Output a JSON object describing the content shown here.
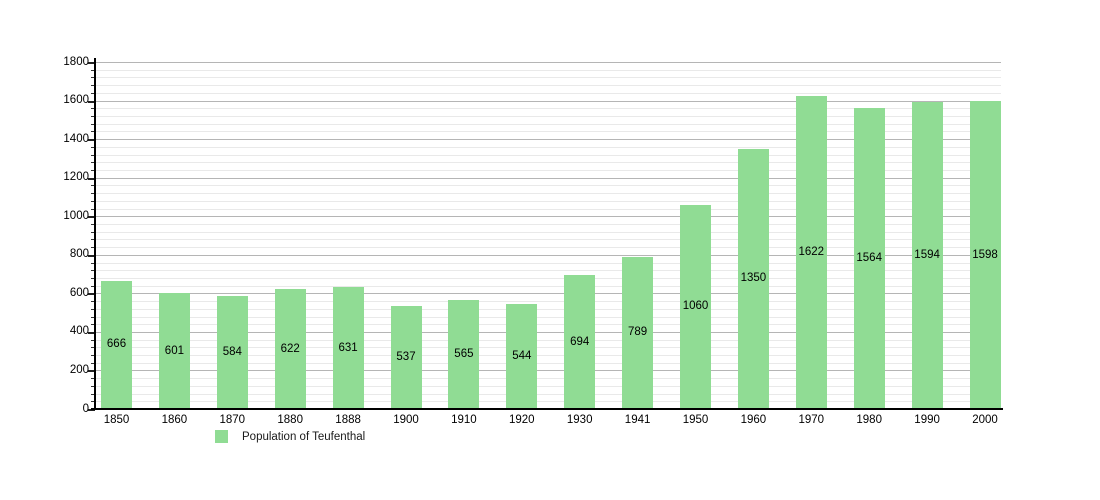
{
  "chart_data": {
    "type": "bar",
    "title": "",
    "xlabel": "",
    "ylabel": "",
    "categories": [
      "1850",
      "1860",
      "1870",
      "1880",
      "1888",
      "1900",
      "1910",
      "1920",
      "1930",
      "1941",
      "1950",
      "1960",
      "1970",
      "1980",
      "1990",
      "2000"
    ],
    "values": [
      666,
      601,
      584,
      622,
      631,
      537,
      565,
      544,
      694,
      789,
      1060,
      1350,
      1622,
      1564,
      1594,
      1598
    ],
    "series_name": "Population of Teufenthal",
    "ylim": [
      0,
      1800
    ],
    "y_major_step": 200,
    "y_minor_step": 40,
    "grid": "on",
    "legend_position": "bottom-left",
    "bar_color": "#90dc94",
    "major_grid_color": "#b5b5b5",
    "minor_grid_color": "#e9e9e9",
    "axis_color": "#000000",
    "text_color": "#000000"
  },
  "legend": {
    "label": "Population of Teufenthal",
    "swatch_color": "#90dc94"
  }
}
